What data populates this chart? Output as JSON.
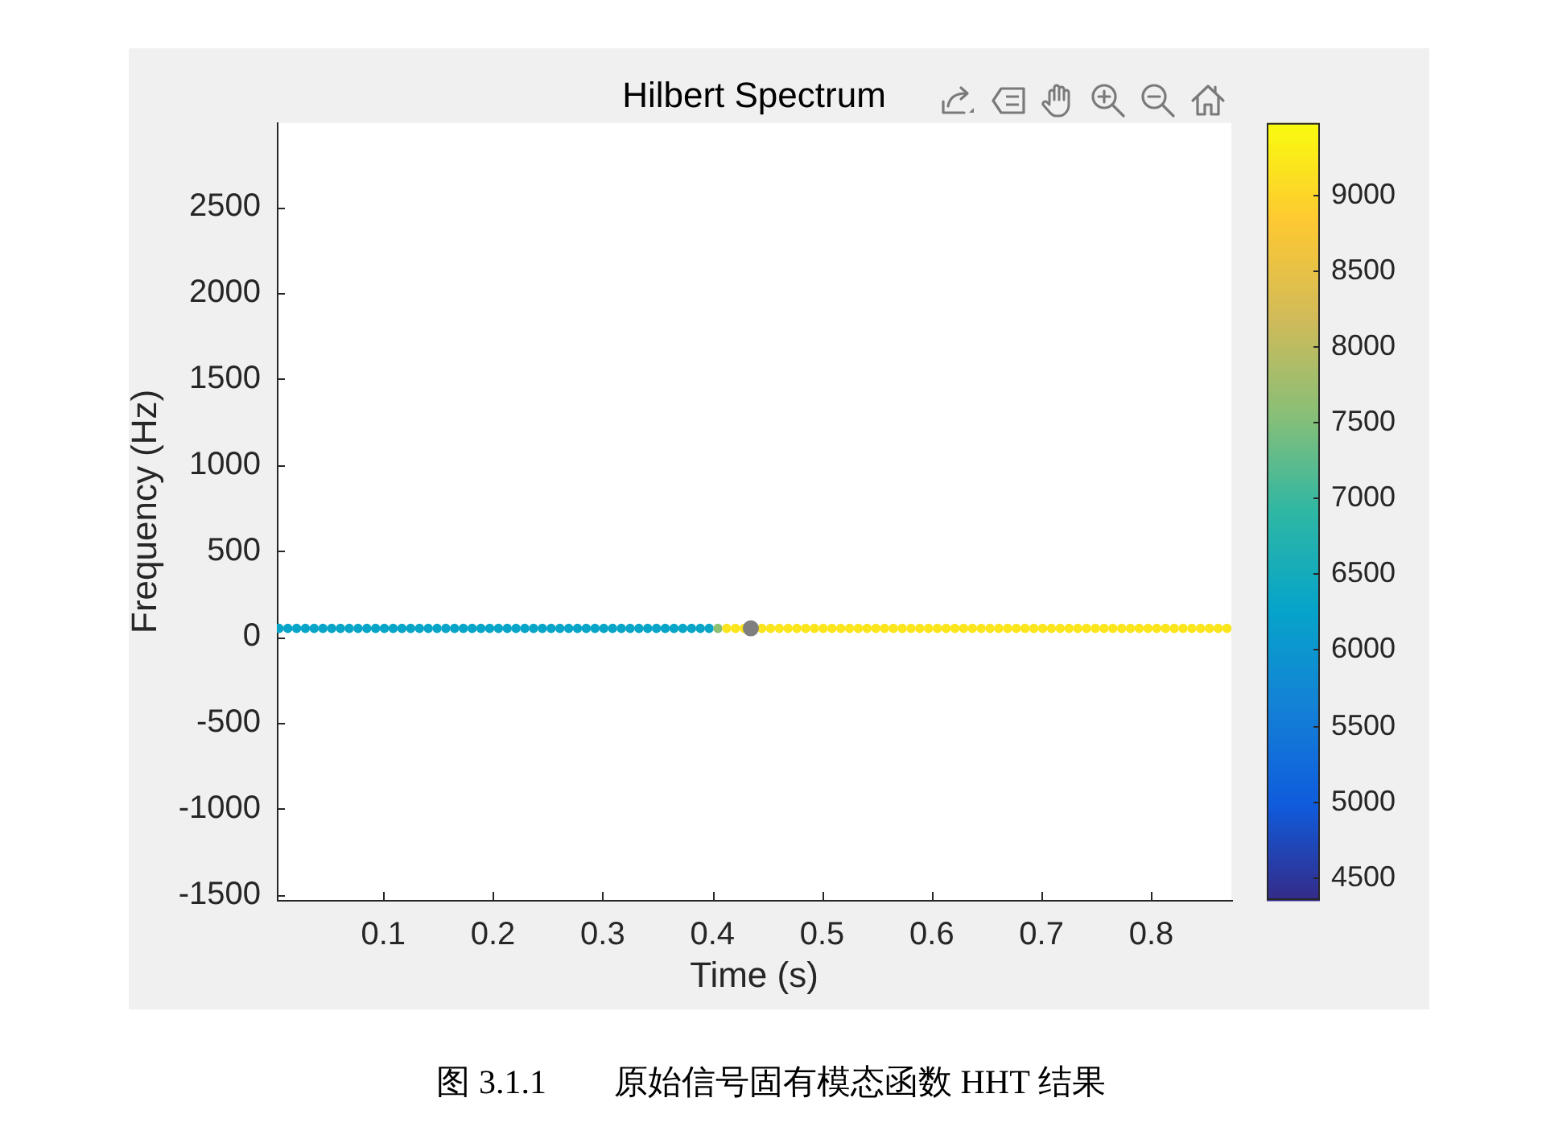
{
  "chart_data": {
    "type": "scatter",
    "title": "Hilbert Spectrum",
    "xlabel": "Time (s)",
    "ylabel": "Frequency (Hz)",
    "annotations": [
      "图 3.1.1　　原始信号固有模态函数 HHT 结果"
    ],
    "marker": "circle",
    "xlim": [
      0.003,
      0.873
    ],
    "xticks": [
      0.1,
      0.2,
      0.3,
      0.4,
      0.5,
      0.6,
      0.7,
      0.8
    ],
    "ylim": [
      -1530,
      2990
    ],
    "yticks": [
      -1500,
      -1000,
      -500,
      0,
      500,
      1000,
      1500,
      2000,
      2500
    ],
    "clim": [
      4350,
      9470
    ],
    "cticks": [
      4500,
      5000,
      5500,
      6000,
      6500,
      7000,
      7500,
      8000,
      8500,
      9000
    ],
    "series": [
      {
        "x": [
          0.005,
          0.013,
          0.021,
          0.029,
          0.037,
          0.045,
          0.053,
          0.061,
          0.069,
          0.077,
          0.085,
          0.093,
          0.101,
          0.109,
          0.117,
          0.125,
          0.133,
          0.141,
          0.149,
          0.157,
          0.165,
          0.173,
          0.181,
          0.189,
          0.197,
          0.205,
          0.213,
          0.221,
          0.229,
          0.237,
          0.245,
          0.253,
          0.261,
          0.269,
          0.277,
          0.285,
          0.293,
          0.301,
          0.309,
          0.317,
          0.325,
          0.333,
          0.341,
          0.349,
          0.357,
          0.365,
          0.373,
          0.381,
          0.389,
          0.397,
          0.405,
          0.413,
          0.421,
          0.429,
          0.437,
          0.445,
          0.453,
          0.461,
          0.469,
          0.477,
          0.485,
          0.493,
          0.501,
          0.509,
          0.517,
          0.525,
          0.533,
          0.541,
          0.549,
          0.557,
          0.565,
          0.573,
          0.581,
          0.589,
          0.597,
          0.605,
          0.613,
          0.621,
          0.629,
          0.637,
          0.645,
          0.653,
          0.661,
          0.669,
          0.677,
          0.685,
          0.693,
          0.701,
          0.709,
          0.717,
          0.725,
          0.733,
          0.741,
          0.749,
          0.757,
          0.765,
          0.773,
          0.781,
          0.789,
          0.797,
          0.805,
          0.813,
          0.821,
          0.829,
          0.837,
          0.845,
          0.853,
          0.861,
          0.869
        ],
        "values": [
          50,
          50,
          50,
          50,
          50,
          50,
          50,
          50,
          50,
          50,
          50,
          50,
          50,
          50,
          50,
          50,
          50,
          50,
          50,
          50,
          50,
          50,
          50,
          50,
          50,
          50,
          50,
          50,
          50,
          50,
          50,
          50,
          50,
          50,
          50,
          50,
          50,
          50,
          50,
          50,
          50,
          50,
          50,
          50,
          50,
          50,
          50,
          50,
          50,
          50,
          50,
          50,
          50,
          50,
          null,
          50,
          50,
          50,
          50,
          50,
          50,
          50,
          50,
          50,
          50,
          50,
          50,
          50,
          50,
          50,
          50,
          50,
          50,
          50,
          50,
          50,
          50,
          50,
          50,
          50,
          50,
          50,
          50,
          50,
          50,
          50,
          50,
          50,
          50,
          50,
          50,
          50,
          50,
          50,
          50,
          50,
          50,
          50,
          50,
          50,
          50,
          50,
          50,
          50,
          50,
          50,
          50,
          50,
          50
        ],
        "cvalues": [
          6300,
          6300,
          6300,
          6300,
          6300,
          6300,
          6300,
          6300,
          6300,
          6300,
          6300,
          6300,
          6300,
          6300,
          6300,
          6300,
          6300,
          6300,
          6300,
          6300,
          6300,
          6300,
          6300,
          6300,
          6300,
          6300,
          6300,
          6300,
          6300,
          6300,
          6300,
          6300,
          6300,
          6300,
          6300,
          6300,
          6300,
          6300,
          6300,
          6300,
          6300,
          6300,
          6300,
          6300,
          6300,
          6300,
          6300,
          6300,
          6300,
          6300,
          7600,
          9200,
          9200,
          9200,
          null,
          9200,
          9200,
          9200,
          9200,
          9200,
          9200,
          9200,
          9200,
          9200,
          9200,
          9200,
          9200,
          9200,
          9200,
          9200,
          9200,
          9200,
          9200,
          9200,
          9200,
          9200,
          9200,
          9200,
          9200,
          9200,
          9200,
          9200,
          9200,
          9200,
          9200,
          9200,
          9200,
          9200,
          9200,
          9200,
          9200,
          9200,
          9200,
          9200,
          9200,
          9200,
          9200,
          9200,
          9200,
          9200,
          9200,
          9200,
          9200,
          9200,
          9200,
          9200,
          9200,
          9200,
          9200
        ],
        "colors": [
          "#08a5c8",
          "#08a5c8",
          "#08a5c8",
          "#08a5c8",
          "#08a5c8",
          "#08a5c8",
          "#08a5c8",
          "#08a5c8",
          "#08a5c8",
          "#08a5c8",
          "#08a5c8",
          "#08a5c8",
          "#08a5c8",
          "#08a5c8",
          "#08a5c8",
          "#08a5c8",
          "#08a5c8",
          "#08a5c8",
          "#08a5c8",
          "#08a5c8",
          "#08a5c8",
          "#08a5c8",
          "#08a5c8",
          "#08a5c8",
          "#08a5c8",
          "#08a5c8",
          "#08a5c8",
          "#08a5c8",
          "#08a5c8",
          "#08a5c8",
          "#08a5c8",
          "#08a5c8",
          "#08a5c8",
          "#08a5c8",
          "#08a5c8",
          "#08a5c8",
          "#08a5c8",
          "#08a5c8",
          "#08a5c8",
          "#08a5c8",
          "#08a5c8",
          "#08a5c8",
          "#08a5c8",
          "#08a5c8",
          "#08a5c8",
          "#08a5c8",
          "#08a5c8",
          "#08a5c8",
          "#08a5c8",
          "#08a5c8",
          "#8dbf75",
          "#fbe51d",
          "#fbe51d",
          "#fbe51d",
          null,
          "#fbe51d",
          "#fbe51d",
          "#fbe51d",
          "#fbe51d",
          "#fbe51d",
          "#fbe51d",
          "#fbe51d",
          "#fbe51d",
          "#fbe51d",
          "#fbe51d",
          "#fbe51d",
          "#fbe51d",
          "#fbe51d",
          "#fbe51d",
          "#fbe51d",
          "#fbe51d",
          "#fbe51d",
          "#fbe51d",
          "#fbe51d",
          "#fbe51d",
          "#fbe51d",
          "#fbe51d",
          "#fbe51d",
          "#fbe51d",
          "#fbe51d",
          "#fbe51d",
          "#fbe51d",
          "#fbe51d",
          "#fbe51d",
          "#fbe51d",
          "#fbe51d",
          "#fbe51d",
          "#fbe51d",
          "#fbe51d",
          "#fbe51d",
          "#fbe51d",
          "#fbe51d",
          "#fbe51d",
          "#fbe51d",
          "#fbe51d",
          "#fbe51d",
          "#fbe51d",
          "#fbe51d",
          "#fbe51d",
          "#fbe51d",
          "#fbe51d",
          "#fbe51d",
          "#fbe51d",
          "#fbe51d",
          "#fbe51d",
          "#fbe51d",
          "#fbe51d",
          "#fbe51d",
          "#fbe51d"
        ]
      },
      {
        "x": [
          0.435
        ],
        "values": [
          50
        ],
        "color": "#7f7f7f"
      }
    ]
  }
}
